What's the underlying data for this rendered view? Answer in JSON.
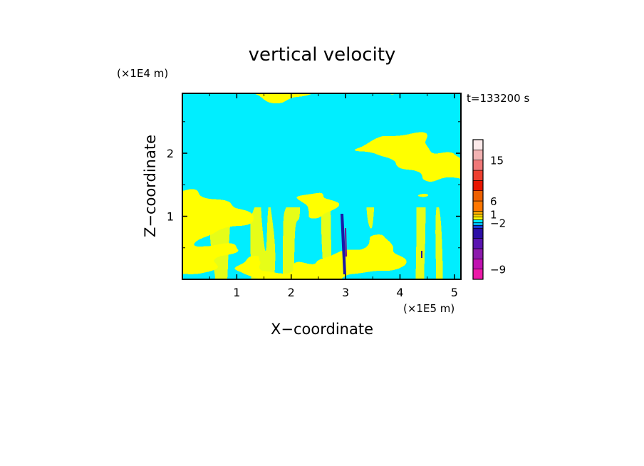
{
  "chart_data": {
    "type": "heatmap",
    "title": "vertical velocity",
    "xlabel": "X−coordinate",
    "ylabel": "Z−coordinate",
    "x_scale_label": "(×1E5 m)",
    "y_scale_label": "(×1E4 m)",
    "time_label": "t=133200 s",
    "xlim": [
      0,
      5.12
    ],
    "ylim": [
      0,
      2.95
    ],
    "x_ticks": [
      {
        "value": 1,
        "label": "1"
      },
      {
        "value": 2,
        "label": "2"
      },
      {
        "value": 3,
        "label": "3"
      },
      {
        "value": 4,
        "label": "4"
      },
      {
        "value": 5,
        "label": "5"
      }
    ],
    "y_ticks": [
      {
        "value": 1,
        "label": "1"
      },
      {
        "value": 2,
        "label": "2"
      }
    ],
    "field_colors": {
      "positive_weak": "#ffff00",
      "negative_weak": "#00eeff",
      "strong_negative": "#1a1aa8",
      "strong_negative_dark": "#7a0a8a"
    },
    "colorbar": {
      "levels": [
        {
          "color": "#ec1aa8"
        },
        {
          "color": "#c011b0"
        },
        {
          "color": "#8c1aac"
        },
        {
          "color": "#5a14b0"
        },
        {
          "color": "#2c0ea6"
        },
        {
          "color": "#1a3ad8"
        },
        {
          "color": "#00b8f0"
        },
        {
          "color": "#00eeff"
        },
        {
          "color": "#ffff00"
        },
        {
          "color": "#ffd400"
        },
        {
          "color": "#ffaa00"
        },
        {
          "color": "#ff7700"
        },
        {
          "color": "#ee6000"
        },
        {
          "color": "#e81500"
        },
        {
          "color": "#ee4030"
        },
        {
          "color": "#f07878"
        },
        {
          "color": "#f2b2b2"
        },
        {
          "color": "#fce9e9"
        }
      ],
      "labels": [
        {
          "value": -9,
          "label": "−9"
        },
        {
          "value": -2,
          "label": "−2"
        },
        {
          "value": 1,
          "label": "1"
        },
        {
          "value": 6,
          "label": "6"
        },
        {
          "value": 15,
          "label": "15"
        }
      ]
    }
  }
}
